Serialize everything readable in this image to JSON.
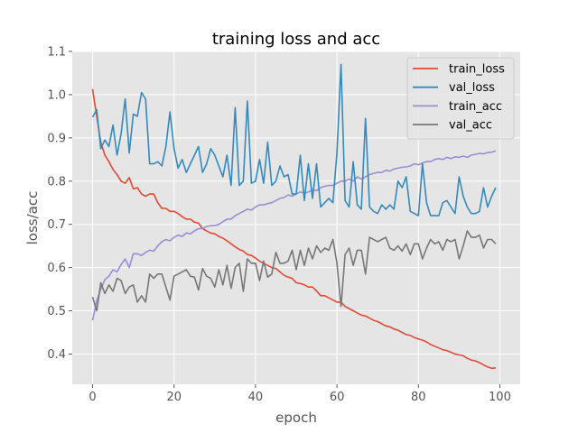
{
  "chart_data": {
    "type": "line",
    "title": "training loss and acc",
    "xlabel": "epoch",
    "ylabel": "loss/acc",
    "xlim": [
      -5,
      105
    ],
    "ylim": [
      0.33,
      1.1
    ],
    "xticks": [
      0,
      20,
      40,
      60,
      80,
      100
    ],
    "yticks": [
      0.4,
      0.5,
      0.6,
      0.7,
      0.8,
      0.9,
      1.0,
      1.1
    ],
    "grid": true,
    "legend_position": "top-right",
    "x": [
      0,
      1,
      2,
      3,
      4,
      5,
      6,
      7,
      8,
      9,
      10,
      11,
      12,
      13,
      14,
      15,
      16,
      17,
      18,
      19,
      20,
      21,
      22,
      23,
      24,
      25,
      26,
      27,
      28,
      29,
      30,
      31,
      32,
      33,
      34,
      35,
      36,
      37,
      38,
      39,
      40,
      41,
      42,
      43,
      44,
      45,
      46,
      47,
      48,
      49,
      50,
      51,
      52,
      53,
      54,
      55,
      56,
      57,
      58,
      59,
      60,
      61,
      62,
      63,
      64,
      65,
      66,
      67,
      68,
      69,
      70,
      71,
      72,
      73,
      74,
      75,
      76,
      77,
      78,
      79,
      80,
      81,
      82,
      83,
      84,
      85,
      86,
      87,
      88,
      89,
      90,
      91,
      92,
      93,
      94,
      95,
      96,
      97,
      98,
      99
    ],
    "series": [
      {
        "name": "train_loss",
        "color": "#E24A33",
        "values": [
          1.013,
          0.95,
          0.89,
          0.86,
          0.845,
          0.827,
          0.815,
          0.8,
          0.795,
          0.808,
          0.782,
          0.785,
          0.77,
          0.765,
          0.77,
          0.77,
          0.75,
          0.737,
          0.737,
          0.73,
          0.73,
          0.725,
          0.718,
          0.712,
          0.712,
          0.705,
          0.703,
          0.69,
          0.685,
          0.68,
          0.678,
          0.672,
          0.668,
          0.662,
          0.655,
          0.648,
          0.642,
          0.638,
          0.63,
          0.628,
          0.622,
          0.615,
          0.61,
          0.605,
          0.6,
          0.598,
          0.59,
          0.582,
          0.578,
          0.575,
          0.565,
          0.563,
          0.56,
          0.555,
          0.555,
          0.546,
          0.535,
          0.535,
          0.53,
          0.525,
          0.52,
          0.52,
          0.51,
          0.505,
          0.5,
          0.495,
          0.49,
          0.488,
          0.483,
          0.478,
          0.475,
          0.47,
          0.465,
          0.463,
          0.458,
          0.455,
          0.45,
          0.445,
          0.443,
          0.438,
          0.435,
          0.432,
          0.428,
          0.422,
          0.418,
          0.414,
          0.41,
          0.408,
          0.404,
          0.4,
          0.398,
          0.396,
          0.39,
          0.386,
          0.384,
          0.38,
          0.375,
          0.37,
          0.367,
          0.368
        ]
      },
      {
        "name": "val_loss",
        "color": "#348ABD",
        "values": [
          0.948,
          0.965,
          0.875,
          0.895,
          0.88,
          0.93,
          0.86,
          0.91,
          0.99,
          0.865,
          0.955,
          0.95,
          1.005,
          0.99,
          0.84,
          0.84,
          0.845,
          0.835,
          0.88,
          0.96,
          0.875,
          0.83,
          0.85,
          0.82,
          0.84,
          0.86,
          0.88,
          0.82,
          0.84,
          0.875,
          0.86,
          0.835,
          0.81,
          0.86,
          0.79,
          0.97,
          0.79,
          0.8,
          0.985,
          0.795,
          0.8,
          0.85,
          0.795,
          0.89,
          0.79,
          0.8,
          0.835,
          0.81,
          0.815,
          0.77,
          0.77,
          0.86,
          0.755,
          0.84,
          0.76,
          0.84,
          0.74,
          0.75,
          0.76,
          0.75,
          0.865,
          1.07,
          0.755,
          0.74,
          0.845,
          0.745,
          0.735,
          0.945,
          0.74,
          0.73,
          0.725,
          0.745,
          0.735,
          0.745,
          0.735,
          0.8,
          0.785,
          0.81,
          0.73,
          0.725,
          0.72,
          0.84,
          0.75,
          0.72,
          0.72,
          0.72,
          0.75,
          0.755,
          0.74,
          0.725,
          0.81,
          0.765,
          0.74,
          0.725,
          0.725,
          0.73,
          0.785,
          0.74,
          0.765,
          0.785
        ]
      },
      {
        "name": "train_acc",
        "color": "#988ED5",
        "values": [
          0.478,
          0.523,
          0.55,
          0.572,
          0.58,
          0.595,
          0.59,
          0.607,
          0.62,
          0.6,
          0.632,
          0.632,
          0.628,
          0.635,
          0.64,
          0.638,
          0.65,
          0.66,
          0.665,
          0.662,
          0.67,
          0.675,
          0.672,
          0.68,
          0.678,
          0.685,
          0.69,
          0.69,
          0.695,
          0.697,
          0.697,
          0.7,
          0.706,
          0.712,
          0.712,
          0.72,
          0.725,
          0.73,
          0.735,
          0.733,
          0.74,
          0.745,
          0.745,
          0.748,
          0.75,
          0.755,
          0.76,
          0.762,
          0.768,
          0.765,
          0.77,
          0.775,
          0.772,
          0.775,
          0.78,
          0.778,
          0.785,
          0.788,
          0.79,
          0.79,
          0.795,
          0.8,
          0.8,
          0.805,
          0.8,
          0.81,
          0.805,
          0.81,
          0.815,
          0.818,
          0.82,
          0.82,
          0.825,
          0.823,
          0.828,
          0.83,
          0.832,
          0.833,
          0.835,
          0.84,
          0.838,
          0.842,
          0.845,
          0.845,
          0.85,
          0.852,
          0.85,
          0.855,
          0.852,
          0.856,
          0.855,
          0.858,
          0.855,
          0.86,
          0.862,
          0.864,
          0.863,
          0.866,
          0.867,
          0.87
        ]
      },
      {
        "name": "val_acc",
        "color": "#777777",
        "values": [
          0.532,
          0.5,
          0.565,
          0.54,
          0.56,
          0.545,
          0.575,
          0.57,
          0.54,
          0.555,
          0.56,
          0.52,
          0.535,
          0.52,
          0.585,
          0.575,
          0.585,
          0.585,
          0.555,
          0.525,
          0.58,
          0.585,
          0.59,
          0.595,
          0.58,
          0.578,
          0.548,
          0.598,
          0.58,
          0.575,
          0.555,
          0.595,
          0.56,
          0.605,
          0.552,
          0.6,
          0.61,
          0.545,
          0.62,
          0.61,
          0.61,
          0.57,
          0.615,
          0.578,
          0.585,
          0.635,
          0.61,
          0.61,
          0.615,
          0.64,
          0.595,
          0.64,
          0.605,
          0.645,
          0.62,
          0.65,
          0.635,
          0.645,
          0.64,
          0.665,
          0.61,
          0.51,
          0.63,
          0.645,
          0.605,
          0.64,
          0.64,
          0.585,
          0.67,
          0.665,
          0.66,
          0.665,
          0.67,
          0.645,
          0.64,
          0.65,
          0.638,
          0.655,
          0.63,
          0.655,
          0.655,
          0.62,
          0.645,
          0.665,
          0.655,
          0.66,
          0.64,
          0.665,
          0.66,
          0.665,
          0.62,
          0.65,
          0.685,
          0.67,
          0.67,
          0.675,
          0.645,
          0.665,
          0.665,
          0.655
        ]
      }
    ]
  }
}
